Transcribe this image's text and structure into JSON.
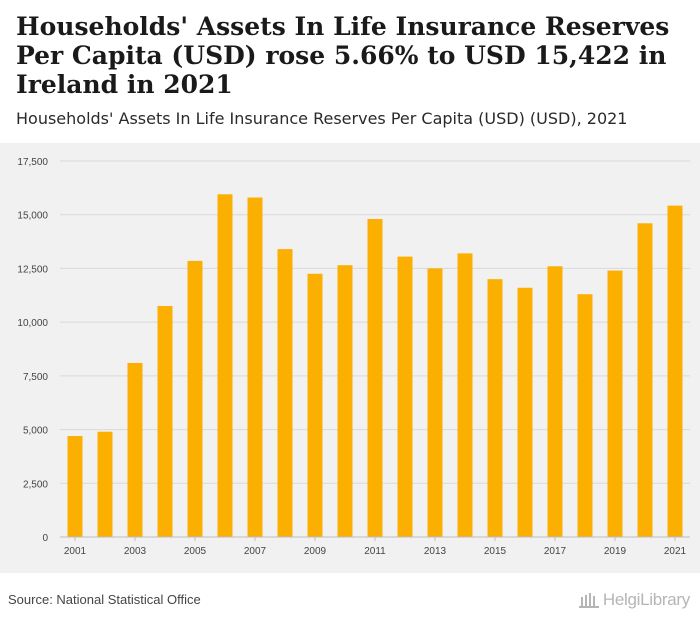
{
  "header": {
    "title": "Households' Assets In Life Insurance Reserves Per Capita (USD) rose 5.66% to USD 15,422 in Ireland in 2021",
    "subtitle": "Households' Assets In Life Insurance Reserves Per Capita (USD) (USD), 2021"
  },
  "footer": {
    "source": "Source: National Statistical Office",
    "logo_text": "HelgiLibrary"
  },
  "colors": {
    "bar": "#FBAF00",
    "grid": "#d9d9d9",
    "panel": "#f1f1f1",
    "axis_text": "#444444"
  },
  "chart_data": {
    "type": "bar",
    "title": "Households' Assets In Life Insurance Reserves Per Capita (USD) (USD), 2021",
    "xlabel": "",
    "ylabel": "",
    "ylim": [
      0,
      17500
    ],
    "yticks": [
      0,
      2500,
      5000,
      7500,
      10000,
      12500,
      15000,
      17500
    ],
    "ytick_labels": [
      "0",
      "2,500",
      "5,000",
      "7,500",
      "10,000",
      "12,500",
      "15,000",
      "17,500"
    ],
    "categories": [
      "2001",
      "2002",
      "2003",
      "2004",
      "2005",
      "2006",
      "2007",
      "2008",
      "2009",
      "2010",
      "2011",
      "2012",
      "2013",
      "2014",
      "2015",
      "2016",
      "2017",
      "2018",
      "2019",
      "2020",
      "2021"
    ],
    "xtick_labels": [
      "2001",
      "2003",
      "2005",
      "2007",
      "2009",
      "2011",
      "2013",
      "2015",
      "2017",
      "2019",
      "2021"
    ],
    "values": [
      4700,
      4900,
      8100,
      10750,
      12850,
      15950,
      15800,
      13400,
      12250,
      12650,
      14800,
      13050,
      12500,
      13200,
      12000,
      11600,
      12600,
      11300,
      12400,
      14600,
      15422
    ],
    "grid": true
  }
}
